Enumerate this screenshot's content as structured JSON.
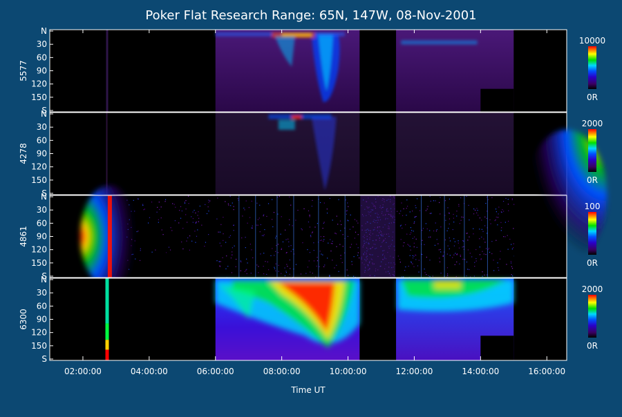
{
  "colors": {
    "background": "#0c4872",
    "foreground": "#ffffff",
    "panel": "#000000"
  },
  "chart_data": {
    "type": "heatmap",
    "title": "Poker Flat Research Range: 65N, 147W, 08-Nov-2001",
    "xlabel": "Time UT",
    "x_range_hours": [
      1.0,
      16.6
    ],
    "x_ticks": [
      {
        "hour": 2,
        "label": "02:00:00"
      },
      {
        "hour": 4,
        "label": "04:00:00"
      },
      {
        "hour": 6,
        "label": "06:00:00"
      },
      {
        "hour": 8,
        "label": "08:00:00"
      },
      {
        "hour": 10,
        "label": "10:00:00"
      },
      {
        "hour": 12,
        "label": "12:00:00"
      },
      {
        "hour": 14,
        "label": "14:00:00"
      },
      {
        "hour": 16,
        "label": "16:00:00"
      }
    ],
    "y_range": [
      0,
      180
    ],
    "y_ticks": [
      "N",
      "30",
      "60",
      "90",
      "120",
      "150",
      "S"
    ],
    "colorbar_unit_label": "0R",
    "data_segments_hours": [
      [
        6.0,
        10.35
      ],
      [
        11.45,
        15.0
      ]
    ],
    "panels": [
      {
        "name": "5577",
        "colorbar_max": "10000"
      },
      {
        "name": "4278",
        "colorbar_max": "2000"
      },
      {
        "name": "4861",
        "colorbar_max": "100"
      },
      {
        "name": "6300",
        "colorbar_max": "2000"
      }
    ]
  }
}
